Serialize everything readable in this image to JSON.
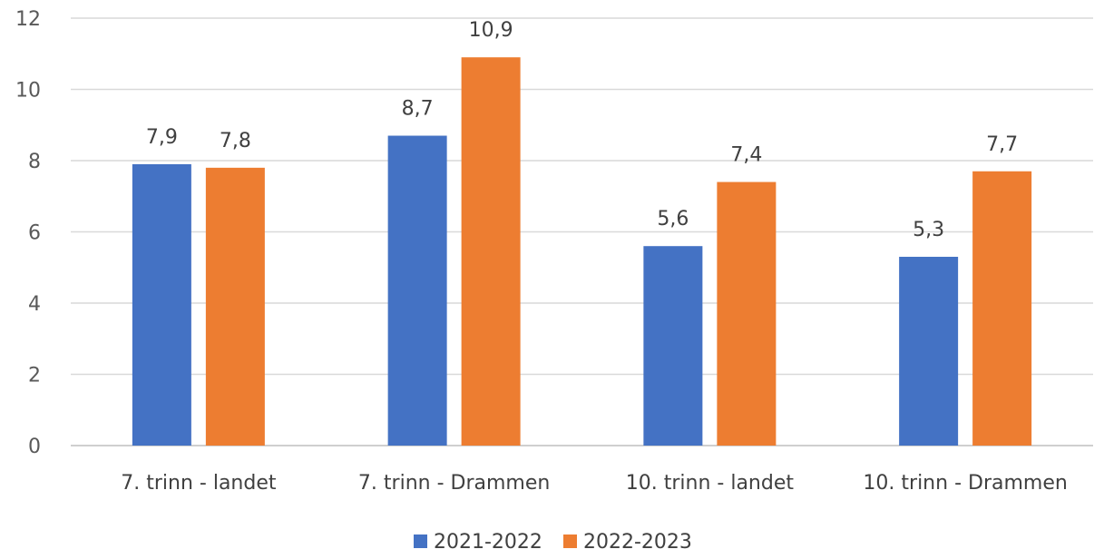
{
  "chart_data": {
    "type": "bar",
    "categories": [
      "7. trinn - landet",
      "7. trinn - Drammen",
      "10. trinn - landet",
      "10. trinn - Drammen"
    ],
    "series": [
      {
        "name": "2021-2022",
        "color": "#4472C4",
        "values": [
          7.9,
          8.7,
          5.6,
          5.3
        ],
        "labels": [
          "7,9",
          "8,7",
          "5,6",
          "5,3"
        ]
      },
      {
        "name": "2022-2023",
        "color": "#ED7D31",
        "values": [
          7.8,
          10.9,
          7.4,
          7.7
        ],
        "labels": [
          "7,8",
          "10,9",
          "7,4",
          "7,7"
        ]
      }
    ],
    "ylim": [
      0,
      12
    ],
    "yticks": [
      0,
      2,
      4,
      6,
      8,
      10,
      12
    ],
    "grid": true,
    "legend": "bottom-center",
    "title": "",
    "xlabel": "",
    "ylabel": ""
  }
}
